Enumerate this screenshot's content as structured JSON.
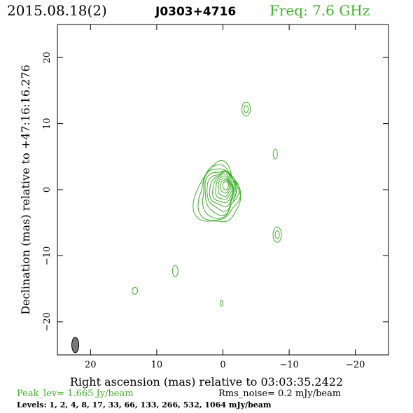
{
  "header": {
    "date": "2015.08.18(2)",
    "source": "J0303+4716",
    "freq": "Freq: 7.6 GHz"
  },
  "footer": {
    "peak": "Peak_lev=  1.665 Jy/beam",
    "rms": "Rms_noise=  0.2 mJy/beam",
    "levels": "Levels:  1,  2,  4,  8,  17,  33,  66,  133,  266,  532,  1064 mJy/beam"
  },
  "colors": {
    "contour": "#3fae2a",
    "beam": "#777777",
    "axis": "#000000"
  },
  "chart_data": {
    "type": "contour",
    "xlabel": "Right ascension (mas) relative to 03:03:35.2422",
    "ylabel": "Declination (mas) relative to +47:16:16.276",
    "xlim": [
      25,
      -25
    ],
    "ylim": [
      -25,
      25
    ],
    "x_ticks": [
      20,
      10,
      0,
      -10,
      -20
    ],
    "y_ticks": [
      20,
      10,
      0,
      -10,
      -20
    ],
    "x_tick_labels": [
      "20",
      "10",
      "0",
      "−10",
      "−20"
    ],
    "y_tick_labels": [
      "20",
      "10",
      "0",
      "−10",
      "−20"
    ],
    "core": {
      "x": -0.3,
      "y": 0.2,
      "levels": 11
    },
    "components": [
      {
        "x": -3.5,
        "y": 12.2
      },
      {
        "x": -7.9,
        "y": 5.4
      },
      {
        "x": -8.2,
        "y": -6.8
      },
      {
        "x": 7.2,
        "y": -12.3
      },
      {
        "x": 13.3,
        "y": -15.3
      },
      {
        "x": 0.2,
        "y": -17.2
      }
    ],
    "beam": {
      "x": 22.3,
      "y": -23.5
    }
  }
}
